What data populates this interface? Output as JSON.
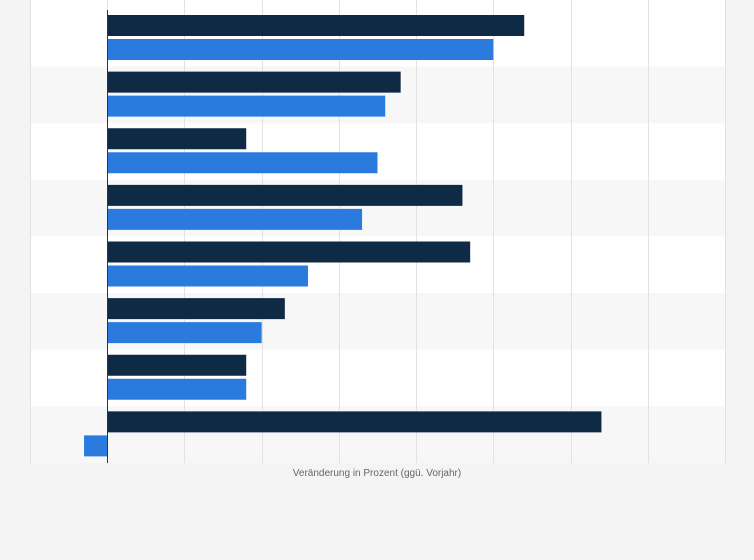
{
  "chart_data": {
    "type": "bar",
    "orientation": "horizontal",
    "categories": [
      "",
      "",
      "",
      "",
      "",
      "",
      "",
      ""
    ],
    "series": [
      {
        "color": "#0f2a45",
        "values": [
          5.4,
          3.8,
          1.8,
          4.6,
          4.7,
          2.3,
          1.8,
          6.4
        ]
      },
      {
        "color": "#2b7bdf",
        "values": [
          5.0,
          3.6,
          3.5,
          3.3,
          2.6,
          2.0,
          1.8,
          -0.3
        ]
      }
    ],
    "xlim": [
      -1,
      8
    ],
    "xtick_step": 1,
    "xlabel": "Veränderung in Prozent (ggü. Vorjahr)",
    "ylabel": "",
    "grid": true,
    "legend": "none"
  }
}
